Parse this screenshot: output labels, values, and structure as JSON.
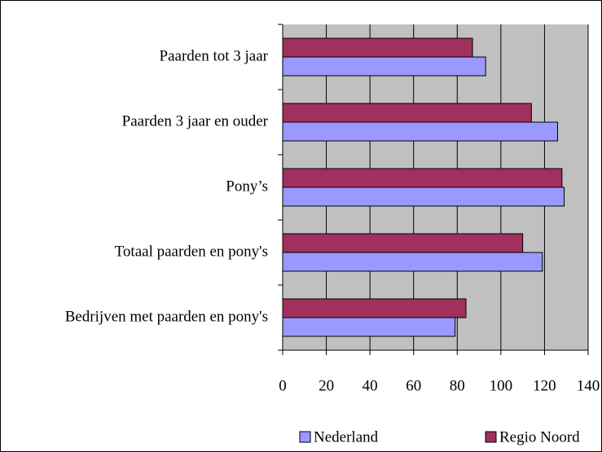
{
  "chart_data": {
    "type": "barh",
    "categories": [
      "Paarden tot 3 jaar",
      "Paarden 3 jaar en ouder",
      "Pony’s",
      "Totaal paarden en pony's",
      "Bedrijven met paarden en pony's"
    ],
    "series": [
      {
        "name": "Nederland",
        "color": "#9999ff",
        "values": [
          93,
          126,
          129,
          119,
          79
        ]
      },
      {
        "name": "Regio Noord",
        "color": "#a0305e",
        "values": [
          87,
          114,
          128,
          110,
          84
        ]
      }
    ],
    "xlim": [
      0,
      140
    ],
    "xticks": [
      0,
      20,
      40,
      60,
      80,
      100,
      120,
      140
    ],
    "grid": true,
    "legend": "bottom"
  }
}
